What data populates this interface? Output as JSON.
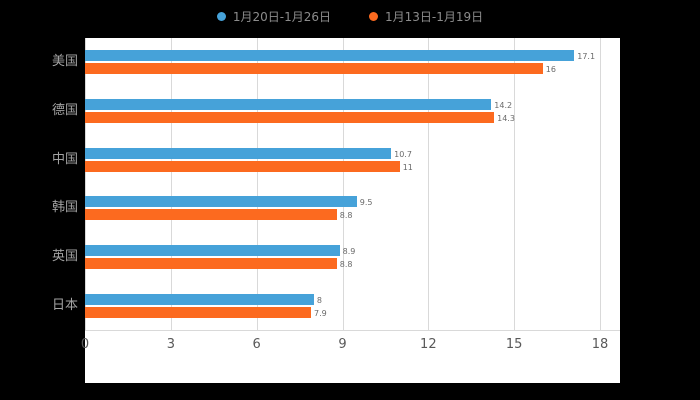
{
  "legend": [
    {
      "label": "1月20日-1月26日",
      "color": "#46A2D9"
    },
    {
      "label": "1月13日-1月19日",
      "color": "#FC6A1F"
    }
  ],
  "chart_data": {
    "type": "bar",
    "orientation": "horizontal",
    "title": "",
    "xlabel": "",
    "ylabel": "",
    "categories": [
      "美国",
      "德国",
      "中国",
      "韩国",
      "英国",
      "日本"
    ],
    "series": [
      {
        "name": "1月20日-1月26日",
        "color": "#46A2D9",
        "values": [
          17.1,
          14.2,
          10.7,
          9.5,
          8.9,
          8
        ]
      },
      {
        "name": "1月13日-1月19日",
        "color": "#FC6A1F",
        "values": [
          16,
          14.3,
          11,
          8.8,
          8.8,
          7.9
        ]
      }
    ],
    "xlim": [
      0,
      18
    ],
    "xticks": [
      0,
      3,
      6,
      9,
      12,
      15,
      18
    ],
    "grid": true,
    "legend_position": "top",
    "plot_background": "#ffffff",
    "page_background": "#000000"
  }
}
